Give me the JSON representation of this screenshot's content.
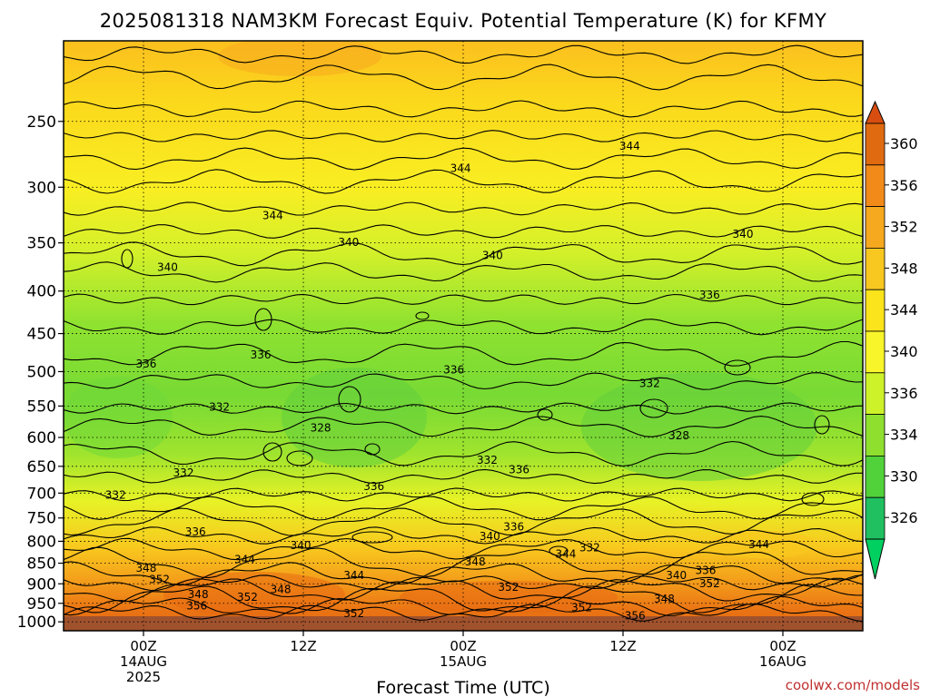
{
  "chart_data": {
    "type": "heatmap",
    "title": "2025081318 NAM3KM Forecast Equiv. Potential Temperature (K) for KFMY",
    "xlabel": "Forecast Time (UTC)",
    "ylabel": "",
    "x_ticks": [
      {
        "label": [
          "00Z",
          "14AUG",
          "2025"
        ],
        "hour": 6
      },
      {
        "label": [
          "12Z"
        ],
        "hour": 18
      },
      {
        "label": [
          "00Z",
          "15AUG"
        ],
        "hour": 30
      },
      {
        "label": [
          "12Z"
        ],
        "hour": 42
      },
      {
        "label": [
          "00Z",
          "16AUG"
        ],
        "hour": 54
      }
    ],
    "x_range_hours": [
      0,
      60
    ],
    "y_ticks_hPa": [
      250,
      300,
      350,
      400,
      450,
      500,
      550,
      600,
      650,
      700,
      750,
      800,
      850,
      900,
      950,
      1000
    ],
    "y_range_hPa": [
      200,
      1025
    ],
    "y_scale": "log-pressure",
    "grid": true,
    "colorbar": {
      "labels": [
        360,
        356,
        352,
        348,
        344,
        340,
        336,
        334,
        330,
        326
      ],
      "colors": [
        "#e06a10",
        "#f28a1a",
        "#f6a81e",
        "#f9c820",
        "#fbe41c",
        "#f8f52a",
        "#cdf22a",
        "#8fe02e",
        "#52d23a",
        "#20c060"
      ],
      "upper_triangle_color": "#d84e10",
      "lower_triangle_color": "#00d060"
    },
    "contour_labels": [
      {
        "value": "344",
        "hour": 15.7,
        "hPa": 325
      },
      {
        "value": "344",
        "hour": 29.8,
        "hPa": 285
      },
      {
        "value": "344",
        "hour": 42.5,
        "hPa": 268
      },
      {
        "value": "340",
        "hour": 7.8,
        "hPa": 375
      },
      {
        "value": "340",
        "hour": 21.4,
        "hPa": 350
      },
      {
        "value": "340",
        "hour": 32.2,
        "hPa": 363
      },
      {
        "value": "340",
        "hour": 51.0,
        "hPa": 342
      },
      {
        "value": "336",
        "hour": 48.5,
        "hPa": 405
      },
      {
        "value": "336",
        "hour": 6.2,
        "hPa": 490
      },
      {
        "value": "336",
        "hour": 14.8,
        "hPa": 478
      },
      {
        "value": "336",
        "hour": 29.3,
        "hPa": 498
      },
      {
        "value": "332",
        "hour": 11.7,
        "hPa": 552
      },
      {
        "value": "332",
        "hour": 44.0,
        "hPa": 517
      },
      {
        "value": "328",
        "hour": 19.3,
        "hPa": 585
      },
      {
        "value": "328",
        "hour": 46.2,
        "hPa": 598
      },
      {
        "value": "332",
        "hour": 9.0,
        "hPa": 663
      },
      {
        "value": "336",
        "hour": 23.3,
        "hPa": 688
      },
      {
        "value": "332",
        "hour": 31.8,
        "hPa": 640
      },
      {
        "value": "336",
        "hour": 34.2,
        "hPa": 657
      },
      {
        "value": "332",
        "hour": 3.9,
        "hPa": 705
      },
      {
        "value": "336",
        "hour": 9.9,
        "hPa": 780
      },
      {
        "value": "340",
        "hour": 17.8,
        "hPa": 810
      },
      {
        "value": "340",
        "hour": 32.0,
        "hPa": 790
      },
      {
        "value": "336",
        "hour": 33.8,
        "hPa": 770
      },
      {
        "value": "332",
        "hour": 39.5,
        "hPa": 815
      },
      {
        "value": "344",
        "hour": 13.6,
        "hPa": 842
      },
      {
        "value": "344",
        "hour": 21.8,
        "hPa": 880
      },
      {
        "value": "344",
        "hour": 37.7,
        "hPa": 830
      },
      {
        "value": "344",
        "hour": 52.2,
        "hPa": 808
      },
      {
        "value": "348",
        "hour": 6.2,
        "hPa": 863
      },
      {
        "value": "348",
        "hour": 30.9,
        "hPa": 848
      },
      {
        "value": "352",
        "hour": 7.2,
        "hPa": 890
      },
      {
        "value": "348",
        "hour": 16.3,
        "hPa": 915
      },
      {
        "value": "348",
        "hour": 10.1,
        "hPa": 928
      },
      {
        "value": "352",
        "hour": 13.8,
        "hPa": 935
      },
      {
        "value": "352",
        "hour": 33.4,
        "hPa": 910
      },
      {
        "value": "340",
        "hour": 46.0,
        "hPa": 880
      },
      {
        "value": "336",
        "hour": 48.2,
        "hPa": 868
      },
      {
        "value": "352",
        "hour": 48.5,
        "hPa": 900
      },
      {
        "value": "348",
        "hour": 45.1,
        "hPa": 940
      },
      {
        "value": "356",
        "hour": 10.0,
        "hPa": 958
      },
      {
        "value": "352",
        "hour": 38.9,
        "hPa": 962
      },
      {
        "value": "352",
        "hour": 21.8,
        "hPa": 978
      },
      {
        "value": "356",
        "hour": 42.9,
        "hPa": 985
      }
    ]
  },
  "footer": {
    "credit": "coolwx.com/models"
  }
}
